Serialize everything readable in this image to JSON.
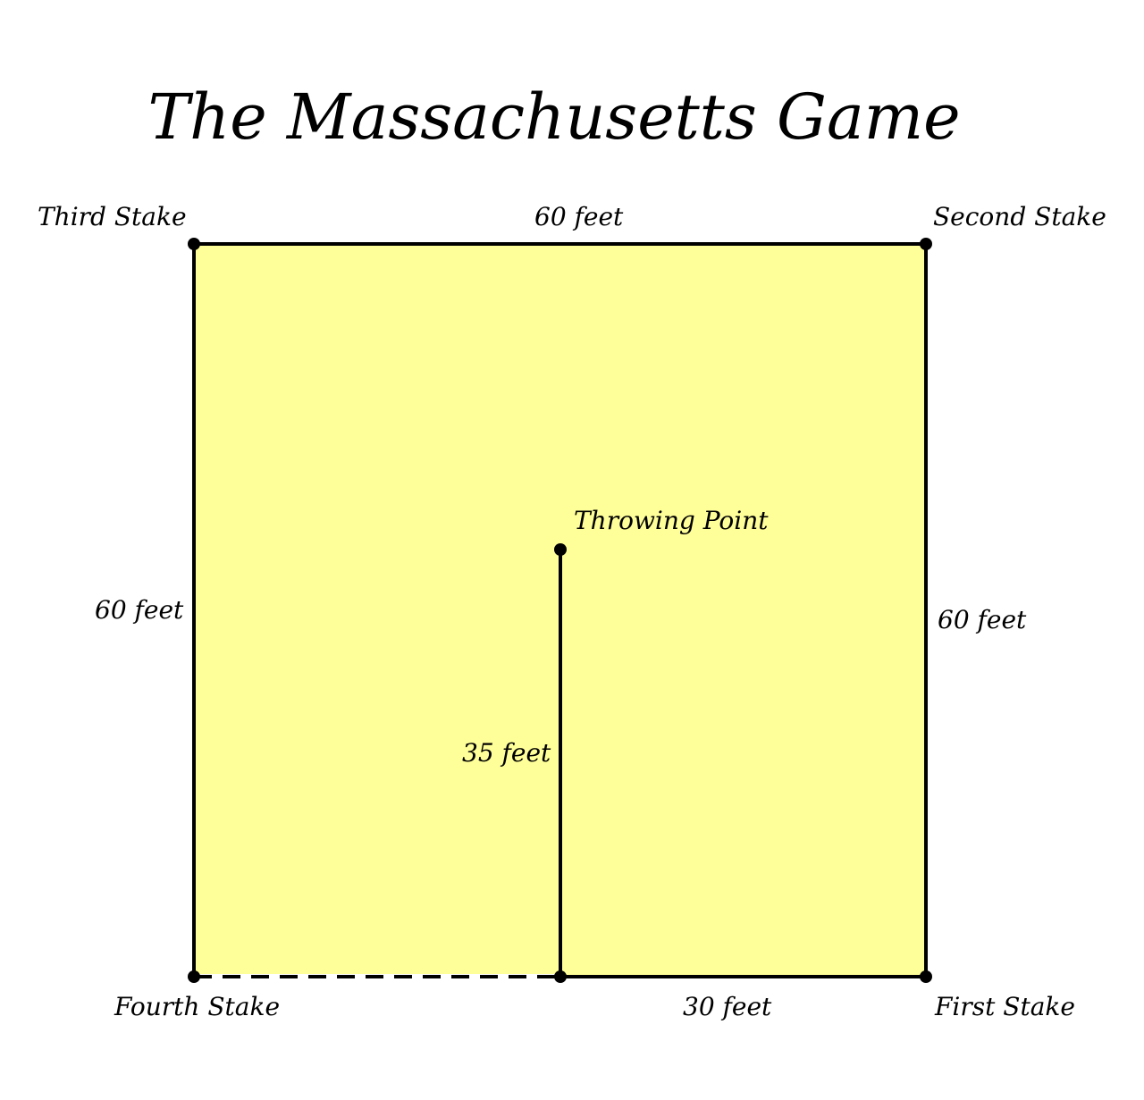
{
  "title": "The Massachusetts Game",
  "labels": {
    "third_stake": "Third Stake",
    "second_stake": "Second Stake",
    "fourth_stake": "Fourth Stake",
    "first_stake": "First Stake",
    "throwing_point": "Throwing Point",
    "top_side": "60 feet",
    "left_side": "60 feet",
    "right_side": "60 feet",
    "center_line": "35 feet",
    "bottom_right": "30 feet"
  },
  "colors": {
    "field_fill": "#ffff99",
    "line": "#000000",
    "background": "#ffffff"
  }
}
